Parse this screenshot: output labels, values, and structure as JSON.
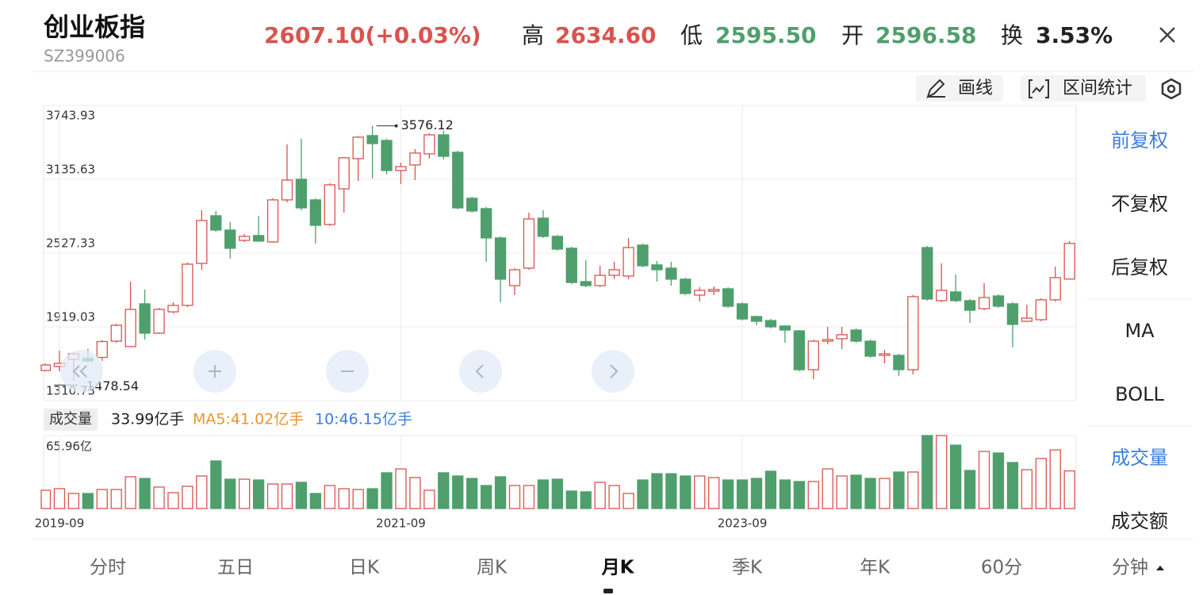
{
  "header": {
    "title": "创业板指",
    "code": "SZ399006",
    "price": "2607.10(+0.03%)",
    "high_label": "高",
    "high": "2634.60",
    "low_label": "低",
    "low": "2595.50",
    "open_label": "开",
    "open": "2596.58",
    "turnover_label": "换",
    "turnover": "3.53%"
  },
  "toolbar": {
    "draw": "画线",
    "range_stats": "区间统计"
  },
  "side_menu": [
    "前复权",
    "不复权",
    "后复权",
    "MA",
    "BOLL",
    "成交量",
    "成交额"
  ],
  "tabs": [
    "分时",
    "五日",
    "日K",
    "周K",
    "月K",
    "季K",
    "年K",
    "60分",
    "分钟"
  ],
  "chart_data": {
    "type": "candlestick",
    "categories": [
      null,
      "2019-09",
      null,
      null,
      null,
      null,
      null,
      null,
      null,
      null,
      null,
      null,
      null,
      null,
      null,
      null,
      null,
      null,
      null,
      null,
      null,
      null,
      null,
      null,
      null,
      "2021-09",
      null,
      null,
      null,
      null,
      null,
      null,
      null,
      null,
      null,
      null,
      null,
      null,
      null,
      null,
      null,
      null,
      null,
      null,
      null,
      null,
      null,
      null,
      null,
      "2023-09",
      null,
      null,
      null,
      null,
      null,
      null,
      null,
      null,
      null,
      null,
      null,
      null,
      null,
      null,
      null,
      null,
      null,
      null,
      null,
      null,
      null,
      null,
      null
    ],
    "open": [
      1559,
      1592,
      1651,
      1658,
      1667,
      1801,
      1756,
      2109,
      1867,
      2043,
      2096,
      2442,
      2835,
      2717,
      2632,
      2672,
      2619,
      2966,
      3136,
      2966,
      2763,
      3057,
      3306,
      3496,
      3456,
      3208,
      3254,
      3345,
      3502,
      3358,
      2979,
      2894,
      2652,
      2259,
      2403,
      2815,
      2665,
      2567,
      2292,
      2259,
      2344,
      2338,
      2593,
      2430,
      2403,
      2312,
      2181,
      2213,
      2233,
      2109,
      2004,
      1971,
      1926,
      1886,
      1566,
      1801,
      1821,
      1893,
      1801,
      1684,
      1684,
      1566,
      2573,
      2135,
      2207,
      2135,
      2069,
      2174,
      2109,
      1965,
      1978,
      2142,
      2313
    ],
    "high": [
      1618,
      1723,
      1710,
      1736,
      1810,
      1945,
      2292,
      2227,
      2076,
      2122,
      2449,
      2881,
      2874,
      2783,
      2684,
      2835,
      2979,
      3424,
      3469,
      2979,
      3103,
      3320,
      3490,
      3576.12,
      3470,
      3273,
      3385,
      3515,
      3535,
      3371,
      2992,
      2907,
      2665,
      2403,
      2861,
      2881,
      2678,
      2580,
      2468,
      2423,
      2455,
      2652,
      2606,
      2462,
      2455,
      2325,
      2246,
      2253,
      2246,
      2122,
      2011,
      1984,
      1932,
      1893,
      1814,
      1919,
      1919,
      1906,
      1814,
      1729,
      1697,
      2181,
      2586,
      2442,
      2351,
      2148,
      2279,
      2187,
      2122,
      2102,
      2155,
      2416,
      2626
    ],
    "low": [
      1553,
      1553,
      1478.54,
      1625,
      1638,
      1788,
      1756,
      1814,
      1860,
      2030,
      2083,
      2390,
      2704,
      2482,
      2619,
      2619,
      2613,
      2946,
      2881,
      2606,
      2750,
      2861,
      3123,
      3142,
      3175,
      3097,
      3129,
      3306,
      3299,
      2887,
      2861,
      2455,
      2122,
      2181,
      2390,
      2652,
      2547,
      2272,
      2246,
      2246,
      2312,
      2312,
      2410,
      2292,
      2259,
      2181,
      2128,
      2181,
      2076,
      1971,
      1932,
      1906,
      1788,
      1553,
      1487,
      1775,
      1736,
      1788,
      1664,
      1618,
      1514,
      1527,
      2135,
      2122,
      2122,
      1952,
      2056,
      2076,
      1749,
      1958,
      1965,
      2128,
      2313
    ],
    "close": [
      1605,
      1618,
      1697,
      1638,
      1798,
      1932,
      2063,
      1867,
      2063,
      2096,
      2436,
      2796,
      2717,
      2567,
      2665,
      2626,
      2966,
      3129,
      2900,
      2756,
      3090,
      3313,
      3483,
      3430,
      3208,
      3240,
      3352,
      3502,
      3325,
      2900,
      2874,
      2652,
      2312,
      2390,
      2809,
      2665,
      2560,
      2285,
      2259,
      2344,
      2390,
      2573,
      2423,
      2390,
      2312,
      2194,
      2220,
      2227,
      2089,
      1984,
      1965,
      1919,
      1893,
      1566,
      1801,
      1814,
      1854,
      1801,
      1677,
      1697,
      1566,
      2168,
      2148,
      2220,
      2135,
      2056,
      2161,
      2089,
      1939,
      1991,
      2142,
      2325,
      2607.1
    ],
    "up_color": "#d9534f",
    "down_color": "#4f9f6c",
    "ylim": [
      1310.73,
      3743.93
    ],
    "yticks": [
      1310.73,
      1919.03,
      2527.33,
      3135.63,
      3743.93
    ],
    "grid": true,
    "max_index": 23,
    "min_index": 2,
    "volume": {
      "label": "成交量",
      "current": "33.99亿手",
      "ma5": "MA5:41.02亿手",
      "ma10": "10:46.15亿手",
      "values": [
        16.5,
        17.9,
        13.6,
        13.6,
        17.2,
        17.2,
        28.7,
        27.2,
        19.4,
        14.3,
        20.1,
        29.4,
        43.0,
        26.5,
        26.5,
        25.8,
        22.2,
        22.2,
        23.7,
        13.6,
        20.8,
        17.9,
        17.2,
        17.9,
        32.3,
        35.8,
        28.0,
        16.5,
        32.3,
        29.4,
        27.2,
        20.8,
        28.7,
        20.8,
        20.8,
        25.8,
        26.5,
        15.8,
        15.1,
        23.7,
        20.8,
        13.6,
        25.8,
        31.5,
        31.5,
        29.4,
        29.4,
        28.0,
        25.8,
        25.8,
        27.2,
        33.7,
        25.8,
        24.4,
        24.4,
        35.8,
        29.4,
        30.1,
        27.2,
        27.2,
        33.0,
        33.0,
        65.96,
        65.96,
        57.3,
        34.4,
        51.6,
        50.2,
        41.6,
        35.1,
        45.2,
        53.0,
        33.99
      ],
      "ylim": [
        0,
        65.96
      ],
      "yticks": [
        {
          "value": 65.96,
          "label": "65.96亿"
        }
      ]
    }
  }
}
